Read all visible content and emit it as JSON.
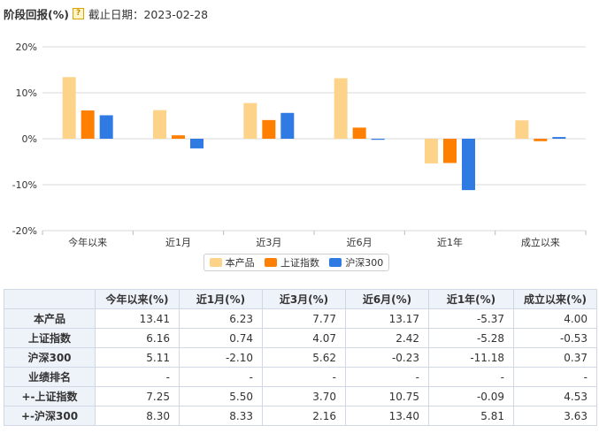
{
  "header": {
    "title": "阶段回报(%)",
    "help_icon": "question-mark-icon",
    "date_text": "截止日期：2023-02-28"
  },
  "chart_data": {
    "type": "bar",
    "categories": [
      "今年以来",
      "近1月",
      "近3月",
      "近6月",
      "近1年",
      "成立以来"
    ],
    "y_ticks": [
      "20%",
      "10%",
      "0%",
      "-10%",
      "-20%"
    ],
    "ylim": [
      -20,
      20
    ],
    "grid": true,
    "legend_position": "bottom",
    "series": [
      {
        "name": "本产品",
        "color": "#FDD38A",
        "values": [
          13.41,
          6.23,
          7.77,
          13.17,
          -5.37,
          4.0
        ]
      },
      {
        "name": "上证指数",
        "color": "#FF7F00",
        "values": [
          6.16,
          0.74,
          4.07,
          2.42,
          -5.28,
          -0.53
        ]
      },
      {
        "name": "沪深300",
        "color": "#2F7BE3",
        "values": [
          5.11,
          -2.1,
          5.62,
          -0.23,
          -11.18,
          0.37
        ]
      }
    ]
  },
  "table": {
    "headers": [
      "",
      "今年以来(%)",
      "近1月(%)",
      "近3月(%)",
      "近6月(%)",
      "近1年(%)",
      "成立以来(%)"
    ],
    "rows": [
      {
        "label": "本产品",
        "cells": [
          "13.41",
          "6.23",
          "7.77",
          "13.17",
          "-5.37",
          "4.00"
        ]
      },
      {
        "label": "上证指数",
        "cells": [
          "6.16",
          "0.74",
          "4.07",
          "2.42",
          "-5.28",
          "-0.53"
        ]
      },
      {
        "label": "沪深300",
        "cells": [
          "5.11",
          "-2.10",
          "5.62",
          "-0.23",
          "-11.18",
          "0.37"
        ]
      },
      {
        "label": "业绩排名",
        "cells": [
          "-",
          "-",
          "-",
          "-",
          "-",
          "-"
        ]
      },
      {
        "label": "+-上证指数",
        "cells": [
          "7.25",
          "5.50",
          "3.70",
          "10.75",
          "-0.09",
          "4.53"
        ]
      },
      {
        "label": "+-沪深300",
        "cells": [
          "8.30",
          "8.33",
          "2.16",
          "13.40",
          "5.81",
          "3.63"
        ]
      }
    ]
  }
}
